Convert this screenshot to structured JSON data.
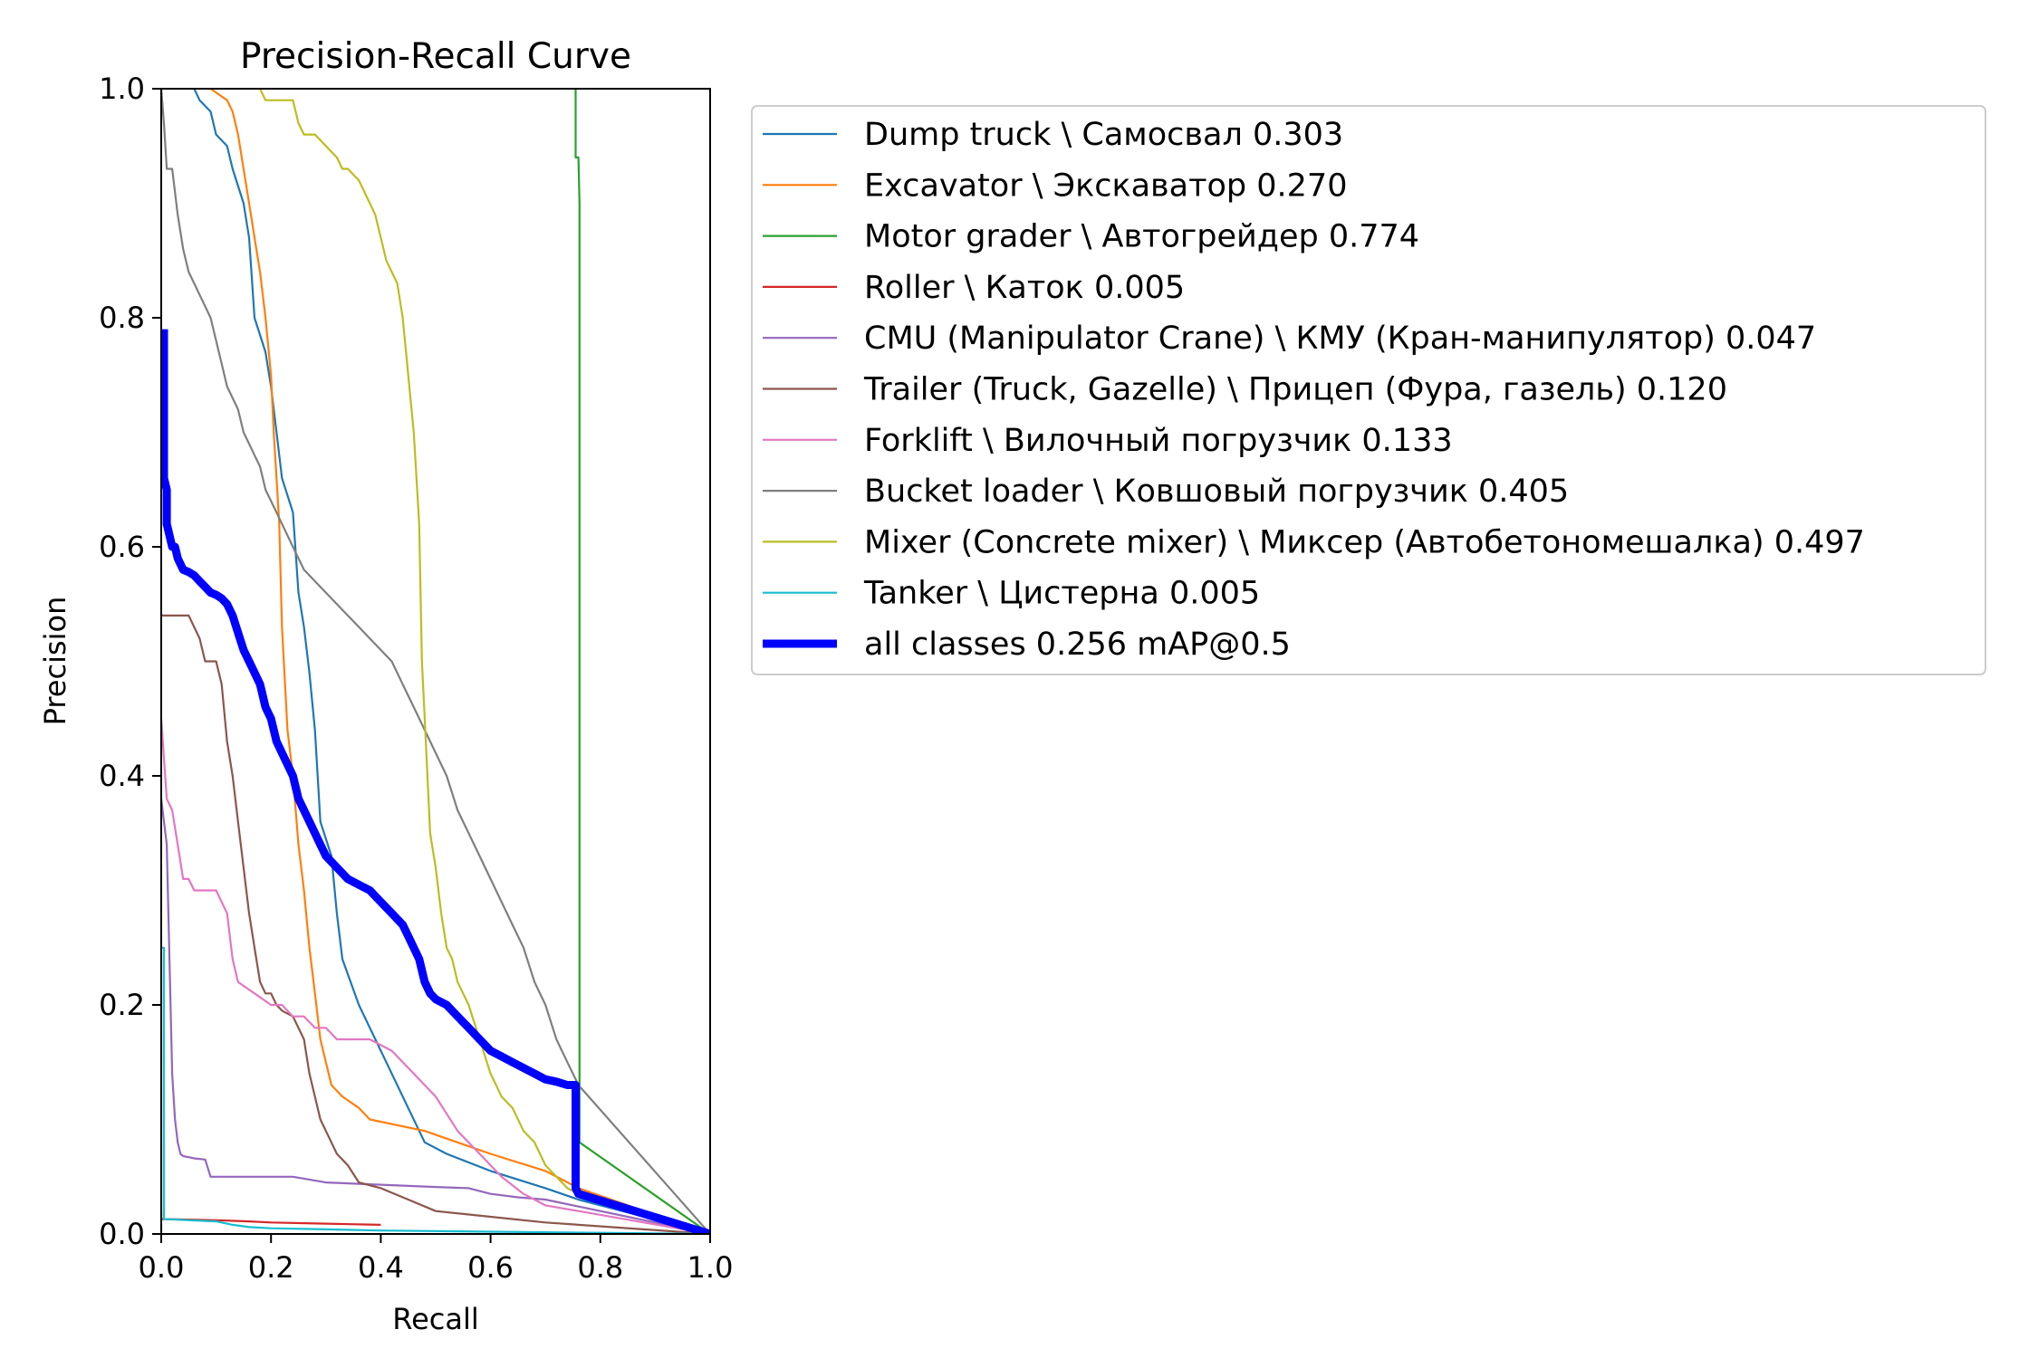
{
  "chart_data": {
    "type": "line",
    "title": "Precision-Recall Curve",
    "xlabel": "Recall",
    "ylabel": "Precision",
    "xlim": [
      0,
      1
    ],
    "ylim": [
      0,
      1
    ],
    "xticks": [
      "0.0",
      "0.2",
      "0.4",
      "0.6",
      "0.8",
      "1.0"
    ],
    "yticks": [
      "0.0",
      "0.2",
      "0.4",
      "0.6",
      "0.8",
      "1.0"
    ],
    "grid": false,
    "legend_position": "outside-right-top",
    "series": [
      {
        "name": "Dump truck \\ Самосвал 0.303",
        "color": "#1f77b4",
        "width": "thin",
        "x": [
          0.06,
          0.07,
          0.09,
          0.1,
          0.12,
          0.13,
          0.15,
          0.16,
          0.17,
          0.19,
          0.2,
          0.21,
          0.22,
          0.24,
          0.25,
          0.26,
          0.27,
          0.28,
          0.29,
          0.31,
          0.32,
          0.33,
          0.36,
          0.38,
          0.41,
          0.44,
          0.48,
          0.52,
          0.6,
          0.7,
          0.76,
          1.0
        ],
        "y": [
          1.0,
          0.99,
          0.98,
          0.96,
          0.95,
          0.93,
          0.9,
          0.87,
          0.8,
          0.77,
          0.74,
          0.7,
          0.66,
          0.63,
          0.56,
          0.53,
          0.49,
          0.44,
          0.36,
          0.33,
          0.28,
          0.24,
          0.2,
          0.18,
          0.15,
          0.12,
          0.08,
          0.07,
          0.055,
          0.04,
          0.03,
          0.0
        ]
      },
      {
        "name": "Excavator \\ Экскаватор 0.270",
        "color": "#ff7f0e",
        "width": "thin",
        "x": [
          0.09,
          0.12,
          0.13,
          0.14,
          0.15,
          0.16,
          0.17,
          0.18,
          0.19,
          0.2,
          0.205,
          0.21,
          0.215,
          0.22,
          0.23,
          0.24,
          0.25,
          0.26,
          0.27,
          0.28,
          0.29,
          0.3,
          0.31,
          0.33,
          0.36,
          0.38,
          0.48,
          0.6,
          0.7,
          0.76,
          1.0
        ],
        "y": [
          1.0,
          0.99,
          0.98,
          0.96,
          0.93,
          0.9,
          0.87,
          0.84,
          0.8,
          0.75,
          0.7,
          0.66,
          0.62,
          0.53,
          0.44,
          0.4,
          0.34,
          0.3,
          0.25,
          0.21,
          0.17,
          0.15,
          0.13,
          0.12,
          0.11,
          0.1,
          0.09,
          0.07,
          0.055,
          0.04,
          0.0
        ]
      },
      {
        "name": "Motor grader \\ Автогрейдер 0.774",
        "color": "#2ca02c",
        "width": "thin",
        "x": [
          0.755,
          0.755,
          0.76,
          0.762,
          0.762,
          1.0
        ],
        "y": [
          1.0,
          0.94,
          0.94,
          0.9,
          0.08,
          0.0
        ]
      },
      {
        "name": "Roller \\ Каток 0.005",
        "color": "#d62728",
        "width": "thin",
        "x": [
          0.0,
          0.0,
          0.01,
          0.1,
          0.16,
          0.2,
          0.3,
          0.4
        ],
        "y": [
          0.02,
          0.013,
          0.013,
          0.012,
          0.011,
          0.01,
          0.009,
          0.008
        ]
      },
      {
        "name": "CMU (Manipulator Crane) \\ КМУ (Кран-манипулятор) 0.047",
        "color": "#9467bd",
        "width": "thin",
        "x": [
          0.0,
          0.01,
          0.015,
          0.02,
          0.025,
          0.03,
          0.035,
          0.04,
          0.05,
          0.06,
          0.08,
          0.09,
          0.1,
          0.12,
          0.16,
          0.2,
          0.24,
          0.3,
          0.4,
          0.5,
          0.56,
          0.6,
          0.65,
          0.7,
          1.0
        ],
        "y": [
          0.38,
          0.34,
          0.24,
          0.14,
          0.1,
          0.08,
          0.07,
          0.068,
          0.067,
          0.066,
          0.065,
          0.05,
          0.05,
          0.05,
          0.05,
          0.05,
          0.05,
          0.045,
          0.043,
          0.041,
          0.04,
          0.035,
          0.032,
          0.03,
          0.0
        ]
      },
      {
        "name": "Trailer (Truck, Gazelle) \\ Прицеп (Фура, газель) 0.120",
        "color": "#8c564b",
        "width": "thin",
        "x": [
          0.0,
          0.05,
          0.07,
          0.08,
          0.09,
          0.1,
          0.11,
          0.12,
          0.13,
          0.14,
          0.15,
          0.16,
          0.17,
          0.18,
          0.19,
          0.2,
          0.21,
          0.22,
          0.24,
          0.26,
          0.27,
          0.28,
          0.29,
          0.3,
          0.32,
          0.34,
          0.36,
          0.4,
          0.45,
          0.5,
          0.6,
          0.7,
          1.0
        ],
        "y": [
          0.54,
          0.54,
          0.52,
          0.5,
          0.5,
          0.5,
          0.48,
          0.43,
          0.4,
          0.36,
          0.32,
          0.28,
          0.25,
          0.22,
          0.21,
          0.21,
          0.2,
          0.195,
          0.19,
          0.17,
          0.14,
          0.12,
          0.1,
          0.09,
          0.07,
          0.06,
          0.045,
          0.04,
          0.03,
          0.02,
          0.015,
          0.01,
          0.0
        ]
      },
      {
        "name": "Forklift \\ Вилочный погрузчик 0.133",
        "color": "#e377c2",
        "width": "thin",
        "x": [
          0.0,
          0.01,
          0.02,
          0.03,
          0.04,
          0.05,
          0.06,
          0.07,
          0.1,
          0.12,
          0.13,
          0.14,
          0.17,
          0.2,
          0.22,
          0.24,
          0.26,
          0.28,
          0.3,
          0.32,
          0.34,
          0.38,
          0.42,
          0.46,
          0.5,
          0.54,
          0.58,
          0.62,
          0.66,
          0.7,
          0.76,
          1.0
        ],
        "y": [
          0.45,
          0.38,
          0.37,
          0.34,
          0.31,
          0.31,
          0.3,
          0.3,
          0.3,
          0.28,
          0.24,
          0.22,
          0.21,
          0.2,
          0.2,
          0.19,
          0.19,
          0.18,
          0.18,
          0.17,
          0.17,
          0.17,
          0.16,
          0.14,
          0.12,
          0.09,
          0.07,
          0.05,
          0.035,
          0.025,
          0.02,
          0.0
        ]
      },
      {
        "name": "Bucket loader \\ Ковшовый погрузчик 0.405",
        "color": "#7f7f7f",
        "width": "thin",
        "x": [
          0.0,
          0.005,
          0.01,
          0.02,
          0.03,
          0.04,
          0.05,
          0.06,
          0.07,
          0.08,
          0.09,
          0.1,
          0.11,
          0.12,
          0.13,
          0.14,
          0.15,
          0.16,
          0.17,
          0.18,
          0.19,
          0.2,
          0.21,
          0.22,
          0.24,
          0.26,
          0.28,
          0.3,
          0.32,
          0.34,
          0.36,
          0.38,
          0.4,
          0.42,
          0.44,
          0.46,
          0.48,
          0.5,
          0.52,
          0.54,
          0.56,
          0.58,
          0.6,
          0.62,
          0.64,
          0.66,
          0.68,
          0.7,
          0.72,
          0.74,
          0.76,
          1.0
        ],
        "y": [
          1.0,
          0.97,
          0.93,
          0.93,
          0.89,
          0.86,
          0.84,
          0.83,
          0.82,
          0.81,
          0.8,
          0.78,
          0.76,
          0.74,
          0.73,
          0.72,
          0.7,
          0.69,
          0.68,
          0.67,
          0.65,
          0.64,
          0.63,
          0.62,
          0.6,
          0.58,
          0.57,
          0.56,
          0.55,
          0.54,
          0.53,
          0.52,
          0.51,
          0.5,
          0.48,
          0.46,
          0.44,
          0.42,
          0.4,
          0.37,
          0.35,
          0.33,
          0.31,
          0.29,
          0.27,
          0.25,
          0.22,
          0.2,
          0.17,
          0.15,
          0.13,
          0.0
        ]
      },
      {
        "name": "Mixer (Concrete mixer) \\ Миксер (Автобетономешалка) 0.497",
        "color": "#bcbd22",
        "width": "thin",
        "x": [
          0.18,
          0.19,
          0.2,
          0.24,
          0.25,
          0.26,
          0.28,
          0.3,
          0.32,
          0.33,
          0.34,
          0.36,
          0.38,
          0.39,
          0.4,
          0.41,
          0.42,
          0.43,
          0.44,
          0.45,
          0.46,
          0.47,
          0.475,
          0.48,
          0.485,
          0.49,
          0.5,
          0.51,
          0.52,
          0.53,
          0.54,
          0.55,
          0.56,
          0.58,
          0.6,
          0.62,
          0.64,
          0.66,
          0.68,
          0.7,
          0.72,
          0.74,
          0.76
        ],
        "y": [
          1.0,
          0.99,
          0.99,
          0.99,
          0.97,
          0.96,
          0.96,
          0.95,
          0.94,
          0.93,
          0.93,
          0.92,
          0.9,
          0.89,
          0.87,
          0.85,
          0.84,
          0.83,
          0.8,
          0.75,
          0.7,
          0.62,
          0.5,
          0.45,
          0.4,
          0.35,
          0.32,
          0.28,
          0.25,
          0.24,
          0.22,
          0.21,
          0.2,
          0.17,
          0.14,
          0.12,
          0.11,
          0.09,
          0.08,
          0.06,
          0.05,
          0.04,
          0.035
        ]
      },
      {
        "name": "Tanker \\ Цистерна 0.005",
        "color": "#17becf",
        "width": "thin",
        "x": [
          0.0,
          0.0,
          0.005,
          0.005,
          0.01,
          0.05,
          0.1,
          0.13,
          0.16,
          0.2,
          0.3,
          0.4,
          0.6,
          0.8,
          1.0
        ],
        "y": [
          0.0,
          0.25,
          0.25,
          0.013,
          0.013,
          0.012,
          0.011,
          0.008,
          0.006,
          0.005,
          0.004,
          0.003,
          0.002,
          0.001,
          0.0
        ]
      },
      {
        "name": "all classes 0.256 mAP@0.5",
        "color": "#0000ff",
        "width": "thick",
        "x": [
          0.005,
          0.005,
          0.01,
          0.01,
          0.015,
          0.02,
          0.025,
          0.03,
          0.035,
          0.04,
          0.05,
          0.06,
          0.07,
          0.08,
          0.09,
          0.1,
          0.11,
          0.12,
          0.13,
          0.14,
          0.15,
          0.16,
          0.17,
          0.18,
          0.19,
          0.2,
          0.21,
          0.22,
          0.23,
          0.24,
          0.25,
          0.26,
          0.27,
          0.28,
          0.29,
          0.3,
          0.32,
          0.34,
          0.36,
          0.38,
          0.4,
          0.42,
          0.44,
          0.45,
          0.46,
          0.47,
          0.48,
          0.49,
          0.5,
          0.52,
          0.54,
          0.56,
          0.58,
          0.6,
          0.62,
          0.64,
          0.66,
          0.68,
          0.7,
          0.72,
          0.74,
          0.755,
          0.755,
          0.76,
          1.0
        ],
        "y": [
          0.79,
          0.66,
          0.65,
          0.62,
          0.61,
          0.6,
          0.6,
          0.59,
          0.585,
          0.58,
          0.578,
          0.575,
          0.57,
          0.565,
          0.56,
          0.558,
          0.555,
          0.55,
          0.54,
          0.525,
          0.51,
          0.5,
          0.49,
          0.48,
          0.46,
          0.45,
          0.43,
          0.42,
          0.41,
          0.4,
          0.38,
          0.37,
          0.36,
          0.35,
          0.34,
          0.33,
          0.32,
          0.31,
          0.305,
          0.3,
          0.29,
          0.28,
          0.27,
          0.26,
          0.25,
          0.24,
          0.22,
          0.21,
          0.205,
          0.2,
          0.19,
          0.18,
          0.17,
          0.16,
          0.155,
          0.15,
          0.145,
          0.14,
          0.135,
          0.133,
          0.13,
          0.13,
          0.04,
          0.035,
          0.0
        ]
      }
    ]
  }
}
